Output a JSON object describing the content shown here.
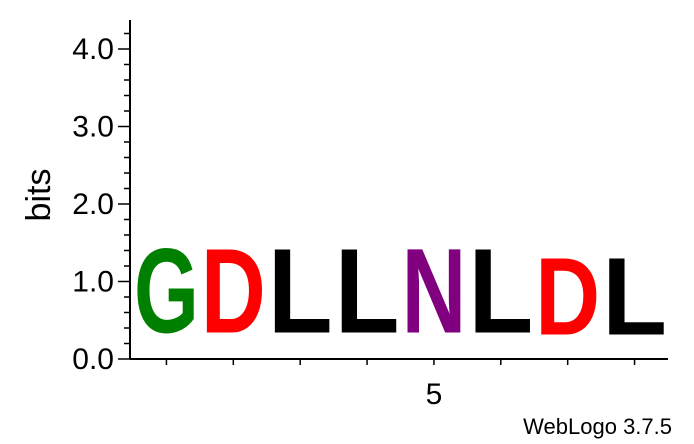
{
  "chart_data": {
    "type": "sequence-logo",
    "ylabel": "bits",
    "ylim": [
      0,
      4.3
    ],
    "yticks": [
      "0.0",
      "1.0",
      "2.0",
      "3.0",
      "4.0"
    ],
    "xtick_labels": [
      {
        "position": 5,
        "label": "5"
      }
    ],
    "positions": [
      {
        "position": 1,
        "letter": "G",
        "bits": 1.75,
        "color": "#008000"
      },
      {
        "position": 2,
        "letter": "D",
        "bits": 1.75,
        "color": "#ff0000"
      },
      {
        "position": 3,
        "letter": "L",
        "bits": 1.75,
        "color": "#000000"
      },
      {
        "position": 4,
        "letter": "L",
        "bits": 1.75,
        "color": "#000000"
      },
      {
        "position": 5,
        "letter": "N",
        "bits": 1.75,
        "color": "#800080"
      },
      {
        "position": 6,
        "letter": "L",
        "bits": 1.75,
        "color": "#000000"
      },
      {
        "position": 7,
        "letter": "D",
        "bits": 1.6,
        "color": "#ff0000"
      },
      {
        "position": 8,
        "letter": "L",
        "bits": 1.6,
        "color": "#000000"
      }
    ]
  },
  "footer": "WebLogo 3.7.5"
}
